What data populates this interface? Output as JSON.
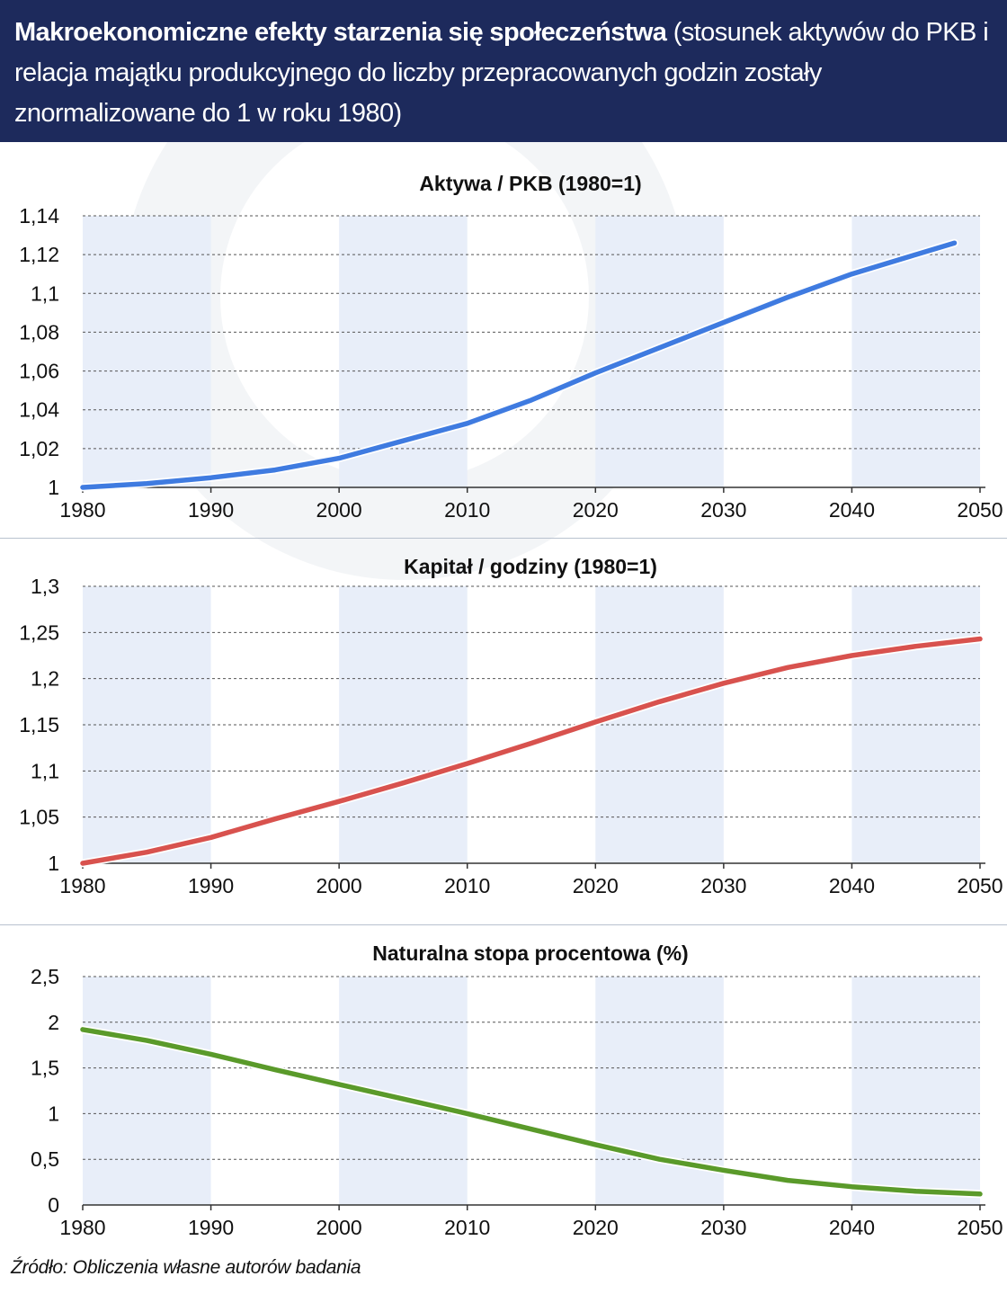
{
  "header": {
    "title_main": "Makroekonomiczne efekty starzenia się społeczeństwa",
    "title_sub": " (stosunek aktywów do PKB i relacja majątku produkcyjnego do liczby przepracowanych godzin zostały znormalizowane do 1 w roku 1980)"
  },
  "source": "Źródło: Obliczenia własne autorów badania",
  "colors": {
    "header_bg": "#1d2a5c",
    "band": "#e8eef9",
    "series_1": "#3f7be0",
    "series_2": "#d8524e",
    "series_3": "#5a9a2a"
  },
  "chart_data": [
    {
      "type": "line",
      "title": "Aktywa / PKB (1980=1)",
      "xlim": [
        1980,
        2050
      ],
      "ylim": [
        1,
        1.14
      ],
      "xticks": [
        "1980",
        "1990",
        "2000",
        "2010",
        "2020",
        "2030",
        "2040",
        "2050"
      ],
      "yticks": [
        "1",
        "1,02",
        "1,04",
        "1,06",
        "1,08",
        "1,1",
        "1,12",
        "1,14"
      ],
      "grid": true,
      "color": "#3f7be0",
      "x": [
        1980,
        1985,
        1990,
        1995,
        2000,
        2005,
        2010,
        2015,
        2020,
        2025,
        2030,
        2035,
        2040,
        2045,
        2048
      ],
      "values": [
        1.0,
        1.002,
        1.005,
        1.009,
        1.015,
        1.024,
        1.033,
        1.045,
        1.059,
        1.072,
        1.085,
        1.098,
        1.11,
        1.12,
        1.126
      ]
    },
    {
      "type": "line",
      "title": "Kapitał / godziny (1980=1)",
      "xlim": [
        1980,
        2050
      ],
      "ylim": [
        1,
        1.3
      ],
      "xticks": [
        "1980",
        "1990",
        "2000",
        "2010",
        "2020",
        "2030",
        "2040",
        "2050"
      ],
      "yticks": [
        "1",
        "1,05",
        "1,1",
        "1,15",
        "1,2",
        "1,25",
        "1,3"
      ],
      "grid": true,
      "color": "#d8524e",
      "x": [
        1980,
        1985,
        1990,
        1995,
        2000,
        2005,
        2010,
        2015,
        2020,
        2025,
        2030,
        2035,
        2040,
        2045,
        2050
      ],
      "values": [
        1.0,
        1.012,
        1.028,
        1.048,
        1.067,
        1.087,
        1.108,
        1.13,
        1.153,
        1.175,
        1.195,
        1.212,
        1.225,
        1.235,
        1.243
      ]
    },
    {
      "type": "line",
      "title": "Naturalna stopa procentowa (%)",
      "xlim": [
        1980,
        2050
      ],
      "ylim": [
        0,
        2.5
      ],
      "xticks": [
        "1980",
        "1990",
        "2000",
        "2010",
        "2020",
        "2030",
        "2040",
        "2050"
      ],
      "yticks": [
        "0",
        "0,5",
        "1",
        "1,5",
        "2",
        "2,5"
      ],
      "grid": true,
      "color": "#5a9a2a",
      "x": [
        1980,
        1985,
        1990,
        1995,
        2000,
        2005,
        2010,
        2015,
        2020,
        2025,
        2030,
        2035,
        2040,
        2045,
        2050
      ],
      "values": [
        1.92,
        1.8,
        1.65,
        1.48,
        1.32,
        1.16,
        1.0,
        0.83,
        0.66,
        0.5,
        0.38,
        0.27,
        0.2,
        0.15,
        0.12
      ]
    }
  ]
}
